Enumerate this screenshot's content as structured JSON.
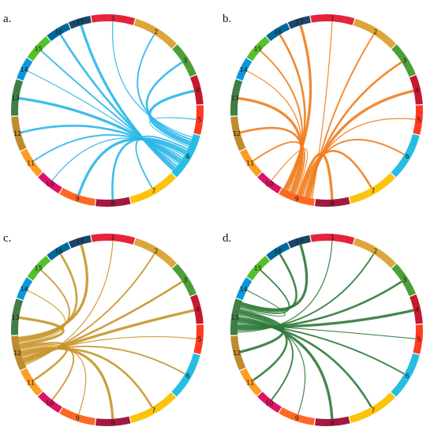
{
  "sdg_colors": {
    "1": "#e5243b",
    "2": "#dda63a",
    "3": "#4c9f38",
    "4": "#c5192d",
    "5": "#ff3a21",
    "6": "#26bde2",
    "7": "#fcc30b",
    "8": "#a21942",
    "9": "#fd6925",
    "10": "#dd1367",
    "11": "#fd9d24",
    "12": "#bf8b2e",
    "13": "#3f7e44",
    "14": "#0a97d9",
    "15": "#56c02b",
    "16": "#00689d",
    "17": "#19486a"
  },
  "segment_labels": [
    "1",
    "2",
    "3",
    "4",
    "5",
    "6",
    "7",
    "8",
    "9",
    "10",
    "11",
    "12",
    "13",
    "14",
    "15",
    "16",
    "17"
  ],
  "panels": [
    {
      "label": "a.",
      "focus": "6",
      "link_color": "#29b6e8",
      "targets": [
        "1",
        "2",
        "3",
        "4",
        "5",
        "7",
        "8",
        "9",
        "10",
        "11",
        "12",
        "13",
        "14",
        "15",
        "16",
        "17"
      ]
    },
    {
      "label": "b.",
      "focus": "9",
      "link_color": "#f07d1c",
      "targets": [
        "1",
        "2",
        "3",
        "4",
        "5",
        "6",
        "7",
        "8",
        "10",
        "11",
        "12",
        "13",
        "14",
        "15",
        "16",
        "17"
      ]
    },
    {
      "label": "c.",
      "focus": "12",
      "link_color": "#c8952a",
      "targets": [
        "1",
        "2",
        "3",
        "4",
        "5",
        "6",
        "7",
        "8",
        "9",
        "10",
        "11",
        "13",
        "14",
        "15",
        "16",
        "17"
      ]
    },
    {
      "label": "d.",
      "focus": "13",
      "link_color": "#2f7a38",
      "targets": [
        "1",
        "2",
        "3",
        "4",
        "5",
        "6",
        "7",
        "8",
        "9",
        "10",
        "11",
        "12",
        "14",
        "15",
        "16",
        "17"
      ]
    }
  ]
}
